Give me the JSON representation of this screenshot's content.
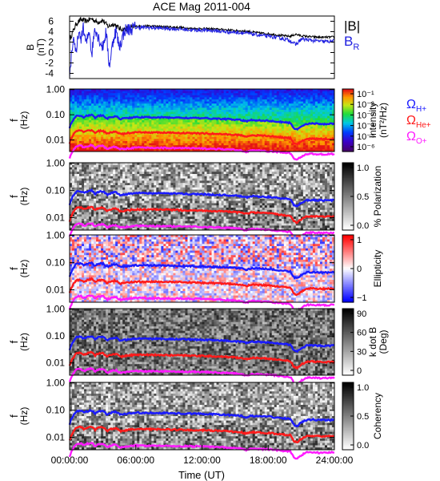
{
  "chart_data": {
    "type": "multi-panel",
    "title": "ACE Mag 2011-004",
    "time_axis": {
      "label": "Time (UT)",
      "range_hours": [
        0,
        24
      ],
      "tick_labels": [
        "00:00:00",
        "06:00:00",
        "12:00:00",
        "18:00:00",
        "24:00:00"
      ],
      "tick_hours": [
        0,
        6,
        12,
        18,
        24
      ]
    },
    "freq_tick_labels": [
      "1.00",
      "0.10",
      "0.01"
    ],
    "freq_tick_values": [
      1,
      0.1,
      0.01
    ],
    "panels": [
      {
        "type": "line",
        "ylabel_lines": [
          "B",
          "(nT)"
        ],
        "ylim": [
          -5,
          7
        ],
        "yticks": [
          -4,
          -2,
          0,
          2,
          4,
          6
        ],
        "legend": [
          {
            "label": "|B|",
            "sub": "",
            "color": "#000000"
          },
          {
            "label": "B",
            "sub": "R",
            "color": "#2020e0"
          }
        ],
        "series": [
          {
            "name": "|B|",
            "color": "#000000",
            "x": [
              0,
              0.3,
              0.6,
              1.0,
              1.5,
              2.0,
              2.5,
              3.0,
              3.5,
              4.0,
              4.5,
              5.0,
              5.5,
              6.0,
              7,
              8,
              9,
              10,
              11,
              12,
              13,
              14,
              15,
              16,
              17,
              18,
              19,
              20,
              20.5,
              21,
              22,
              23,
              24
            ],
            "values": [
              2.5,
              4.0,
              5.5,
              6.3,
              6.0,
              6.5,
              5.8,
              6.2,
              5.0,
              5.5,
              4.6,
              4.4,
              4.8,
              5.0,
              5.1,
              5.0,
              4.9,
              4.8,
              4.6,
              4.6,
              4.5,
              4.4,
              4.2,
              4.1,
              3.8,
              3.6,
              3.3,
              3.1,
              3.5,
              3.2,
              3.0,
              2.9,
              3.0
            ]
          },
          {
            "name": "B_R",
            "color": "#2020e0",
            "x": [
              0,
              0.2,
              0.4,
              0.6,
              0.8,
              1.0,
              1.2,
              1.5,
              1.8,
              2.0,
              2.3,
              2.6,
              3.0,
              3.3,
              3.6,
              4.0,
              4.2,
              4.5,
              5.0,
              5.5,
              6.0,
              7,
              8,
              9,
              10,
              11,
              12,
              13,
              14,
              15,
              16,
              17,
              18,
              19,
              20,
              20.5,
              21,
              22,
              23,
              24
            ],
            "values": [
              -4.5,
              0.5,
              3.0,
              -1.0,
              4.0,
              2.0,
              5.0,
              1.5,
              4.5,
              -0.5,
              5.0,
              3.0,
              1.0,
              4.0,
              -2.5,
              3.0,
              4.2,
              1.0,
              4.3,
              4.5,
              4.8,
              4.8,
              4.7,
              4.6,
              4.5,
              4.3,
              4.3,
              4.2,
              4.0,
              3.9,
              3.7,
              3.4,
              3.1,
              2.8,
              2.3,
              1.5,
              2.6,
              2.3,
              2.1,
              2.2
            ]
          }
        ]
      },
      {
        "type": "heatmap",
        "style": "rainbow",
        "colorbar_labels": [
          "10⁻¹",
          "10⁻²",
          "10⁻³",
          "10⁻⁴",
          "10⁻⁵",
          "10⁻⁶"
        ],
        "colorbar_title": "Intensity",
        "colorbar_units": "(nT²/Hz)",
        "legend": [
          {
            "label": "Ω",
            "sub": "H+",
            "color": "#1a1aff"
          },
          {
            "label": "Ω",
            "sub": "He+",
            "color": "#ff1a1a"
          },
          {
            "label": "Ω",
            "sub": "O+",
            "color": "#ff1aff"
          }
        ]
      },
      {
        "type": "heatmap",
        "style": "gray",
        "colorbar_labels": [
          "1.0",
          "0.5",
          "0.0"
        ],
        "colorbar_title": "% Polarization",
        "colorbar_units": ""
      },
      {
        "type": "heatmap",
        "style": "bwr",
        "colorbar_labels": [
          "1",
          "0",
          "−1"
        ],
        "colorbar_title": "Ellipticity",
        "colorbar_units": ""
      },
      {
        "type": "heatmap",
        "style": "gray-dark",
        "colorbar_labels": [
          "90",
          "60",
          "30",
          "0"
        ],
        "colorbar_title": "k dot B",
        "colorbar_units": "(Deg)"
      },
      {
        "type": "heatmap",
        "style": "gray",
        "colorbar_labels": [
          "1.0",
          "0.5",
          "0.0"
        ],
        "colorbar_title": "Coherency",
        "colorbar_units": ""
      }
    ],
    "freq_ylabel_lines": [
      "f",
      "(Hz)"
    ],
    "gyrofrequency_lines": [
      {
        "name": "H+",
        "color": "#1a1aff",
        "x": [
          0,
          0.3,
          0.6,
          1.0,
          1.3,
          1.6,
          2.0,
          2.3,
          2.6,
          3.0,
          3.4,
          3.8,
          4.2,
          4.6,
          5.0,
          5.5,
          6.0,
          8,
          10,
          12,
          14,
          15.5,
          16.0,
          16.5,
          18,
          19,
          20.0,
          20.3,
          20.6,
          21.0,
          21.5,
          22,
          23,
          24
        ],
        "values": [
          0.03,
          0.06,
          0.09,
          0.095,
          0.08,
          0.092,
          0.1,
          0.075,
          0.09,
          0.094,
          0.07,
          0.082,
          0.087,
          0.068,
          0.072,
          0.077,
          0.08,
          0.079,
          0.076,
          0.073,
          0.068,
          0.062,
          0.055,
          0.062,
          0.058,
          0.052,
          0.048,
          0.03,
          0.026,
          0.035,
          0.044,
          0.045,
          0.043,
          0.044
        ]
      },
      {
        "name": "He+",
        "color": "#ff1a1a",
        "x": [
          0,
          0.3,
          0.6,
          1.0,
          1.3,
          1.6,
          2.0,
          2.3,
          2.6,
          3.0,
          3.4,
          3.8,
          4.2,
          4.6,
          5.0,
          5.5,
          6.0,
          8,
          10,
          12,
          14,
          15.5,
          16.0,
          16.5,
          18,
          19,
          20.0,
          20.3,
          20.6,
          21.0,
          21.5,
          22,
          23,
          24
        ],
        "values": [
          0.0075,
          0.015,
          0.0225,
          0.024,
          0.02,
          0.023,
          0.025,
          0.019,
          0.0225,
          0.0235,
          0.0175,
          0.0205,
          0.0218,
          0.017,
          0.018,
          0.0193,
          0.02,
          0.0198,
          0.019,
          0.0183,
          0.017,
          0.0155,
          0.0138,
          0.0155,
          0.0145,
          0.013,
          0.012,
          0.0075,
          0.0065,
          0.0088,
          0.011,
          0.0113,
          0.0108,
          0.011
        ]
      },
      {
        "name": "O+",
        "color": "#ff1aff",
        "x": [
          0,
          0.3,
          0.6,
          1.0,
          1.3,
          1.6,
          2.0,
          2.3,
          2.6,
          3.0,
          3.4,
          3.8,
          4.2,
          4.6,
          5.0,
          5.5,
          6.0,
          8,
          10,
          12,
          14,
          15.5,
          16.0,
          16.5,
          18,
          19,
          20.0,
          20.3,
          20.6,
          21.0,
          21.5,
          22,
          23,
          24
        ],
        "values": [
          0.0019,
          0.0038,
          0.0056,
          0.006,
          0.005,
          0.0058,
          0.0063,
          0.0047,
          0.0056,
          0.0059,
          0.0044,
          0.0051,
          0.0054,
          0.0043,
          0.0045,
          0.0048,
          0.005,
          0.0049,
          0.0048,
          0.0046,
          0.0043,
          0.0039,
          0.0034,
          0.0039,
          0.0036,
          0.0033,
          0.003,
          0.0019,
          0.0016,
          0.0022,
          0.0028,
          0.0028,
          0.0027,
          0.0028
        ]
      }
    ]
  }
}
